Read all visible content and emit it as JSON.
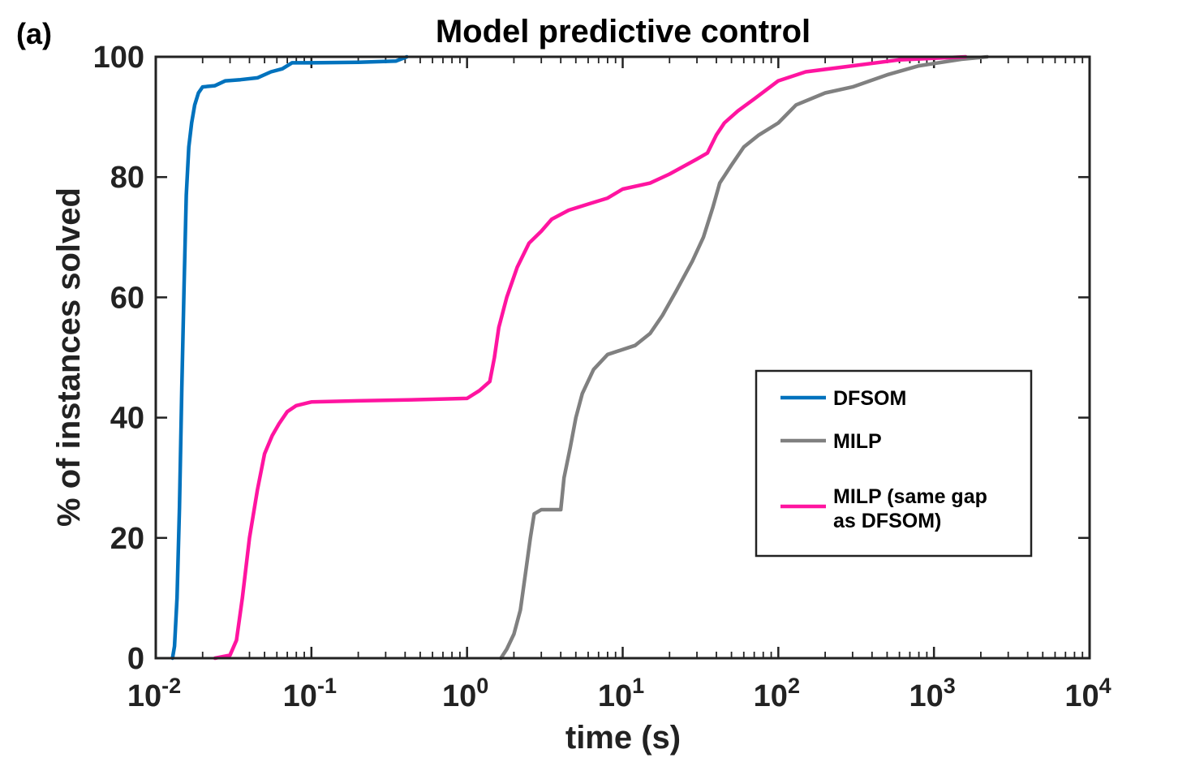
{
  "panel_label": "(a)",
  "chart_data": {
    "type": "line",
    "title": "Model predictive control",
    "xlabel": "time (s)",
    "ylabel": "% of instances solved",
    "xscale": "log",
    "xlim": [
      0.01,
      10000
    ],
    "ylim": [
      0,
      100
    ],
    "xticks": [
      {
        "base": "10",
        "exp": "-2",
        "value": 0.01
      },
      {
        "base": "10",
        "exp": "-1",
        "value": 0.1
      },
      {
        "base": "10",
        "exp": "0",
        "value": 1
      },
      {
        "base": "10",
        "exp": "1",
        "value": 10
      },
      {
        "base": "10",
        "exp": "2",
        "value": 100
      },
      {
        "base": "10",
        "exp": "3",
        "value": 1000
      },
      {
        "base": "10",
        "exp": "4",
        "value": 10000
      }
    ],
    "yticks": [
      0,
      20,
      40,
      60,
      80,
      100
    ],
    "legend": {
      "position": "center-right",
      "entries": [
        {
          "lines": [
            "DFSOM"
          ],
          "series": 0
        },
        {
          "lines": [
            "MILP"
          ],
          "series": 1
        },
        {
          "lines": [
            "MILP (same gap",
            "as DFSOM)"
          ],
          "series": 2
        }
      ]
    },
    "series": [
      {
        "name": "DFSOM",
        "color": "#0072BD",
        "points": [
          [
            0.0128,
            0
          ],
          [
            0.0132,
            2
          ],
          [
            0.0137,
            10
          ],
          [
            0.0142,
            25
          ],
          [
            0.0147,
            45
          ],
          [
            0.0152,
            62
          ],
          [
            0.0157,
            77
          ],
          [
            0.0163,
            85
          ],
          [
            0.017,
            89
          ],
          [
            0.0178,
            92
          ],
          [
            0.0188,
            94
          ],
          [
            0.02,
            95
          ],
          [
            0.024,
            95.2
          ],
          [
            0.028,
            96
          ],
          [
            0.035,
            96.2
          ],
          [
            0.045,
            96.5
          ],
          [
            0.055,
            97.5
          ],
          [
            0.065,
            98
          ],
          [
            0.075,
            99
          ],
          [
            0.1,
            99
          ],
          [
            0.2,
            99.1
          ],
          [
            0.35,
            99.3
          ],
          [
            0.41,
            100
          ]
        ]
      },
      {
        "name": "MILP",
        "color": "#808080",
        "points": [
          [
            1.65,
            0
          ],
          [
            1.8,
            1.5
          ],
          [
            2.0,
            4
          ],
          [
            2.2,
            8
          ],
          [
            2.4,
            15
          ],
          [
            2.55,
            20
          ],
          [
            2.7,
            24
          ],
          [
            3.0,
            24.7
          ],
          [
            4.0,
            24.7
          ],
          [
            4.2,
            30
          ],
          [
            4.6,
            35
          ],
          [
            5.0,
            40
          ],
          [
            5.5,
            44
          ],
          [
            6.5,
            48
          ],
          [
            8.0,
            50.5
          ],
          [
            12.0,
            52
          ],
          [
            15.0,
            54
          ],
          [
            18.0,
            57
          ],
          [
            22.0,
            61
          ],
          [
            28.0,
            66
          ],
          [
            33.0,
            70
          ],
          [
            38.0,
            75
          ],
          [
            42.0,
            79
          ],
          [
            50.0,
            82
          ],
          [
            60.0,
            85
          ],
          [
            75.0,
            87
          ],
          [
            100.0,
            89
          ],
          [
            130.0,
            92
          ],
          [
            200.0,
            94
          ],
          [
            300.0,
            95
          ],
          [
            500.0,
            97
          ],
          [
            800.0,
            98.5
          ],
          [
            1500.0,
            99.6
          ],
          [
            2200.0,
            100
          ]
        ]
      },
      {
        "name": "MILP (same gap as DFSOM)",
        "color": "#FF14A0",
        "points": [
          [
            0.024,
            0
          ],
          [
            0.03,
            0.5
          ],
          [
            0.033,
            3
          ],
          [
            0.036,
            10
          ],
          [
            0.04,
            20
          ],
          [
            0.045,
            28
          ],
          [
            0.05,
            34
          ],
          [
            0.056,
            37
          ],
          [
            0.062,
            39
          ],
          [
            0.07,
            41
          ],
          [
            0.08,
            42
          ],
          [
            0.1,
            42.6
          ],
          [
            0.2,
            42.8
          ],
          [
            0.5,
            43
          ],
          [
            1.0,
            43.2
          ],
          [
            1.2,
            44.5
          ],
          [
            1.4,
            46
          ],
          [
            1.5,
            50
          ],
          [
            1.6,
            55
          ],
          [
            1.8,
            60
          ],
          [
            2.1,
            65
          ],
          [
            2.5,
            69
          ],
          [
            3.0,
            71
          ],
          [
            3.5,
            73
          ],
          [
            4.5,
            74.5
          ],
          [
            6.0,
            75.5
          ],
          [
            8.0,
            76.5
          ],
          [
            10.0,
            78
          ],
          [
            15.0,
            79
          ],
          [
            20.0,
            80.5
          ],
          [
            30.0,
            83
          ],
          [
            35.0,
            84
          ],
          [
            40.0,
            87
          ],
          [
            45.0,
            89
          ],
          [
            55.0,
            91
          ],
          [
            70.0,
            93
          ],
          [
            100.0,
            96
          ],
          [
            150.0,
            97.5
          ],
          [
            300.0,
            98.5
          ],
          [
            600.0,
            99.5
          ],
          [
            1600.0,
            100
          ]
        ]
      }
    ]
  }
}
